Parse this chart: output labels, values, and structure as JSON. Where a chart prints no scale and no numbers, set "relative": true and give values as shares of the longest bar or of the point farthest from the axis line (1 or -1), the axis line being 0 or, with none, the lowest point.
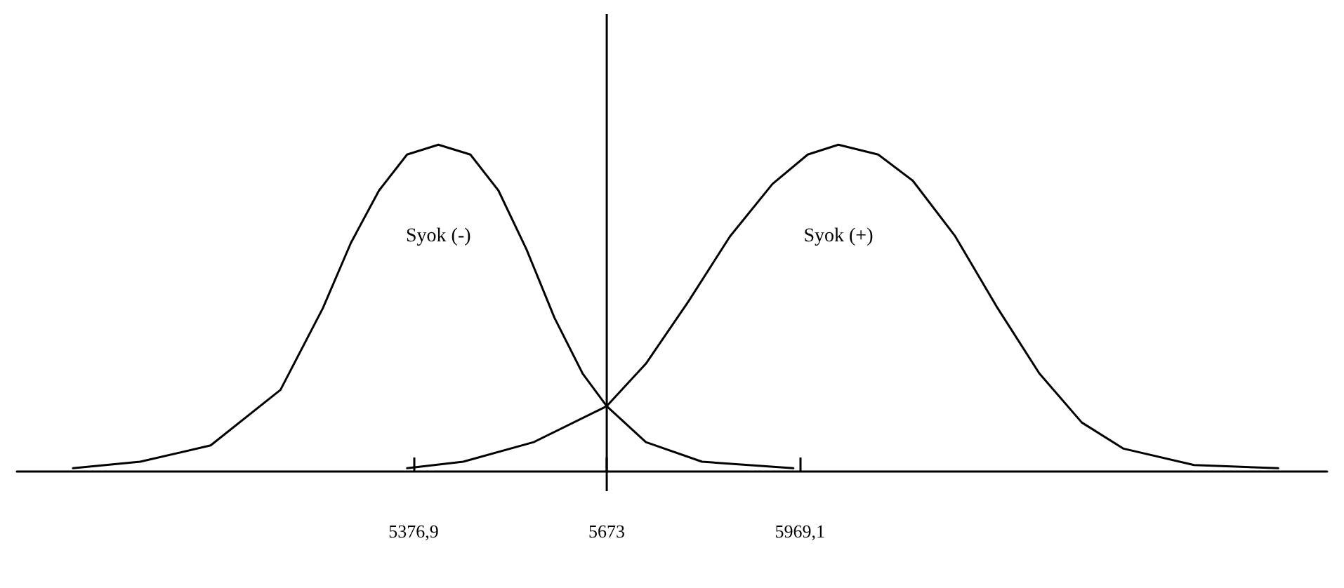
{
  "chart_data": {
    "type": "line",
    "relative": true,
    "marker": "none",
    "line_style": "solid",
    "grid": false,
    "legend": false,
    "tick_labels": "x",
    "xlim": [
      4769,
      6777
    ],
    "xticks": [
      {
        "value": 5376.9,
        "label": "5376,9"
      },
      {
        "value": 5673,
        "label": "5673"
      },
      {
        "value": 5969.1,
        "label": "5969,1"
      }
    ],
    "ref_lines": [
      {
        "axis": "x",
        "value": 5673,
        "color": "#000000",
        "line_style": "solid"
      }
    ],
    "series": [
      {
        "name": "Syok (-)",
        "color": "#000000",
        "x": [
          4855,
          4958,
          5066,
          5173,
          5238,
          5281,
          5324,
          5367,
          5415,
          5464,
          5507,
          5550,
          5593,
          5636,
          5673,
          5733,
          5819,
          5959
        ],
        "values": [
          0.01,
          0.03,
          0.08,
          0.25,
          0.5,
          0.7,
          0.86,
          0.97,
          1.0,
          0.97,
          0.86,
          0.68,
          0.47,
          0.3,
          0.2,
          0.09,
          0.03,
          0.01
        ]
      },
      {
        "name": "Syok (+)",
        "color": "#000000",
        "x": [
          5367,
          5453,
          5561,
          5673,
          5733,
          5798,
          5862,
          5927,
          5981,
          6028,
          6089,
          6142,
          6207,
          6272,
          6336,
          6401,
          6465,
          6573,
          6702
        ],
        "values": [
          0.01,
          0.03,
          0.09,
          0.2,
          0.33,
          0.52,
          0.72,
          0.88,
          0.97,
          1.0,
          0.97,
          0.89,
          0.72,
          0.5,
          0.3,
          0.15,
          0.07,
          0.02,
          0.01
        ]
      }
    ]
  }
}
